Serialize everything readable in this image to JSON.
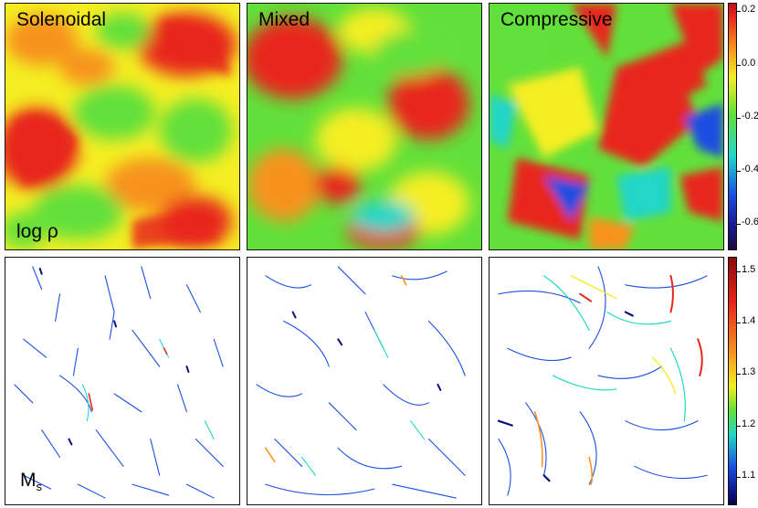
{
  "top_row": {
    "panels": [
      {
        "label": "Solenoidal",
        "field": "density"
      },
      {
        "label": "Mixed",
        "field": "density"
      },
      {
        "label": "Compressive",
        "field": "density"
      }
    ],
    "quantity_label": "log ρ",
    "colorbar": {
      "colormap": "jet",
      "ticks": [
        "0.2",
        "0.0",
        "-0.2",
        "-0.4",
        "-0.6"
      ],
      "range": [
        -0.7,
        0.28
      ]
    }
  },
  "bottom_row": {
    "panels": [
      {
        "field": "shock-mach"
      },
      {
        "field": "shock-mach"
      },
      {
        "field": "shock-mach"
      }
    ],
    "quantity_label": {
      "base": "M",
      "subscript": "s"
    },
    "colorbar": {
      "colormap": "jet",
      "ticks": [
        "1.5",
        "1.4",
        "1.3",
        "1.2",
        "1.1"
      ],
      "range": [
        1.04,
        1.54
      ]
    }
  },
  "colors": {
    "red": "#e8251b",
    "orange": "#f7931e",
    "yellow": "#f4ee22",
    "green": "#62e03a",
    "cyan": "#20d6c8",
    "blue": "#1a4ee0",
    "navy": "#0b0f7a"
  }
}
